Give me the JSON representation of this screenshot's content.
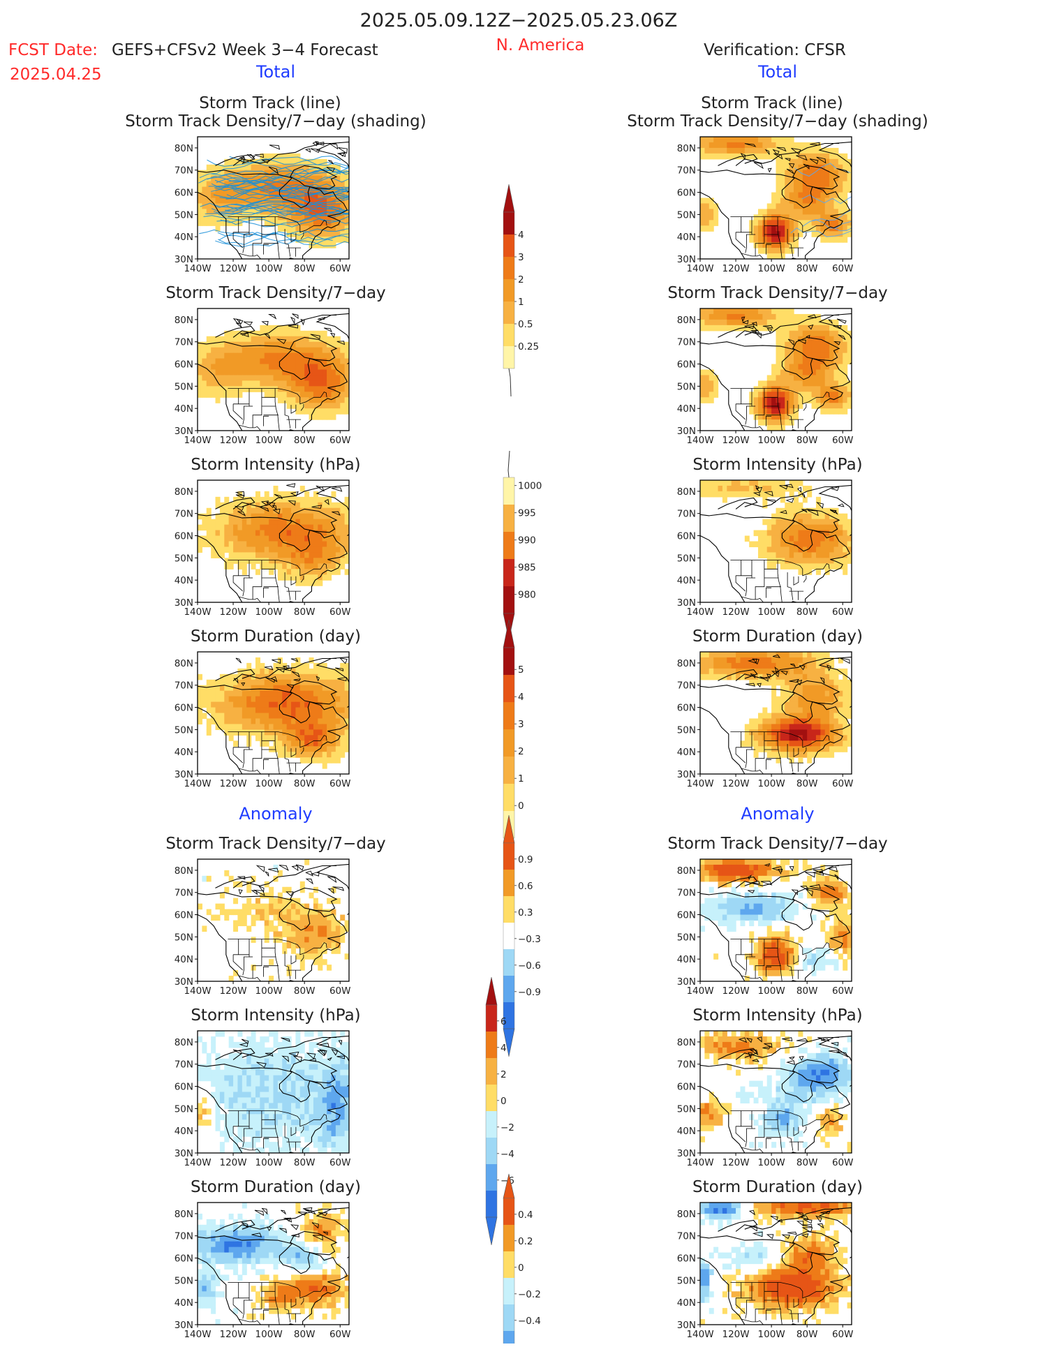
{
  "header": {
    "title": "2025.05.09.12Z−2025.05.23.06Z",
    "fcst_label": "FCST Date:",
    "fcst_date": "2025.04.25",
    "model": "GEFS+CFSv2 Week 3−4 Forecast",
    "region": "N. America",
    "verification": "Verification: CFSR",
    "total_left": "Total",
    "total_right": "Total",
    "anomaly_left": "Anomaly",
    "anomaly_right": "Anomaly"
  },
  "panel_titles": {
    "p1_line1": "Storm Track (line)",
    "p1_line2": "Storm Track Density/7−day (shading)",
    "p2": "Storm Track Density/7−day",
    "p3": "Storm Intensity (hPa)",
    "p4": "Storm Duration (day)",
    "p5": "Storm Track Density/7−day",
    "p6": "Storm Intensity (hPa)",
    "p7": "Storm Duration (day)"
  },
  "axes": {
    "lat_ticks": [
      "80N",
      "70N",
      "60N",
      "50N",
      "40N",
      "30N"
    ],
    "lon_ticks": [
      "140W",
      "120W",
      "100W",
      "80W",
      "60W"
    ]
  },
  "colors": {
    "y1": "#fff5a8",
    "y2": "#ffdd66",
    "o1": "#f7b142",
    "o2": "#f19a26",
    "o3": "#ee7b18",
    "r1": "#e65516",
    "r2": "#c8261a",
    "r3": "#a21010",
    "b1": "#c7f1fb",
    "b2": "#9ed8f5",
    "b3": "#5ea7ee",
    "b4": "#2f74e2",
    "line": "#1a8fd8",
    "title_red": "#ff2a2a",
    "title_blue": "#1f3cff"
  },
  "colorbars": {
    "density": [
      "0.25",
      "0.5",
      "1",
      "2",
      "3",
      "4"
    ],
    "intensity": [
      "1000",
      "995",
      "990",
      "985",
      "980"
    ],
    "duration": [
      "5",
      "4",
      "3",
      "2",
      "1",
      "0"
    ],
    "density_anom": [
      "0.9",
      "0.6",
      "0.3",
      "−0.3",
      "−0.6",
      "−0.9"
    ],
    "intensity_anom": [
      "6",
      "4",
      "2",
      "0",
      "−2",
      "−4",
      "−6"
    ],
    "duration_anom": [
      "0.4",
      "0.2",
      "0",
      "−0.2",
      "−0.4"
    ]
  },
  "chart_data": {
    "type": "heatmap",
    "region": "N. America",
    "lat_range": [
      "30N",
      "85N"
    ],
    "lon_range": [
      "140W",
      "55W"
    ],
    "maps": [
      {
        "name": "Forecast storm track density (total)",
        "column": "forecast",
        "units": "per 7-day",
        "dominant_range": "0.5–2"
      },
      {
        "name": "Verification storm track density (total)",
        "column": "verification",
        "units": "per 7-day",
        "dominant_range": "0.5–4"
      },
      {
        "name": "Forecast storm intensity (total)",
        "column": "forecast",
        "units": "hPa",
        "dominant_range": "995–1000"
      },
      {
        "name": "Verification storm intensity (total)",
        "column": "verification",
        "units": "hPa",
        "dominant_range": "990–1000"
      },
      {
        "name": "Forecast storm duration (total)",
        "column": "forecast",
        "units": "day",
        "dominant_range": "1–3"
      },
      {
        "name": "Verification storm duration (total)",
        "column": "verification",
        "units": "day",
        "dominant_range": "1–5"
      },
      {
        "name": "Forecast density anomaly",
        "column": "forecast",
        "units": "per 7-day",
        "dominant_range": "0.3–0.6"
      },
      {
        "name": "Verification density anomaly",
        "column": "verification",
        "units": "per 7-day",
        "dominant_range": "−0.6–0.9"
      },
      {
        "name": "Forecast intensity anomaly",
        "column": "forecast",
        "units": "hPa",
        "dominant_range": "−2–0"
      },
      {
        "name": "Verification intensity anomaly",
        "column": "verification",
        "units": "hPa",
        "dominant_range": "−4–4"
      },
      {
        "name": "Forecast duration anomaly",
        "column": "forecast",
        "units": "day",
        "dominant_range": "−0.4–0.4"
      },
      {
        "name": "Verification duration anomaly",
        "column": "verification",
        "units": "day",
        "dominant_range": "−0.4–0.4"
      }
    ]
  }
}
